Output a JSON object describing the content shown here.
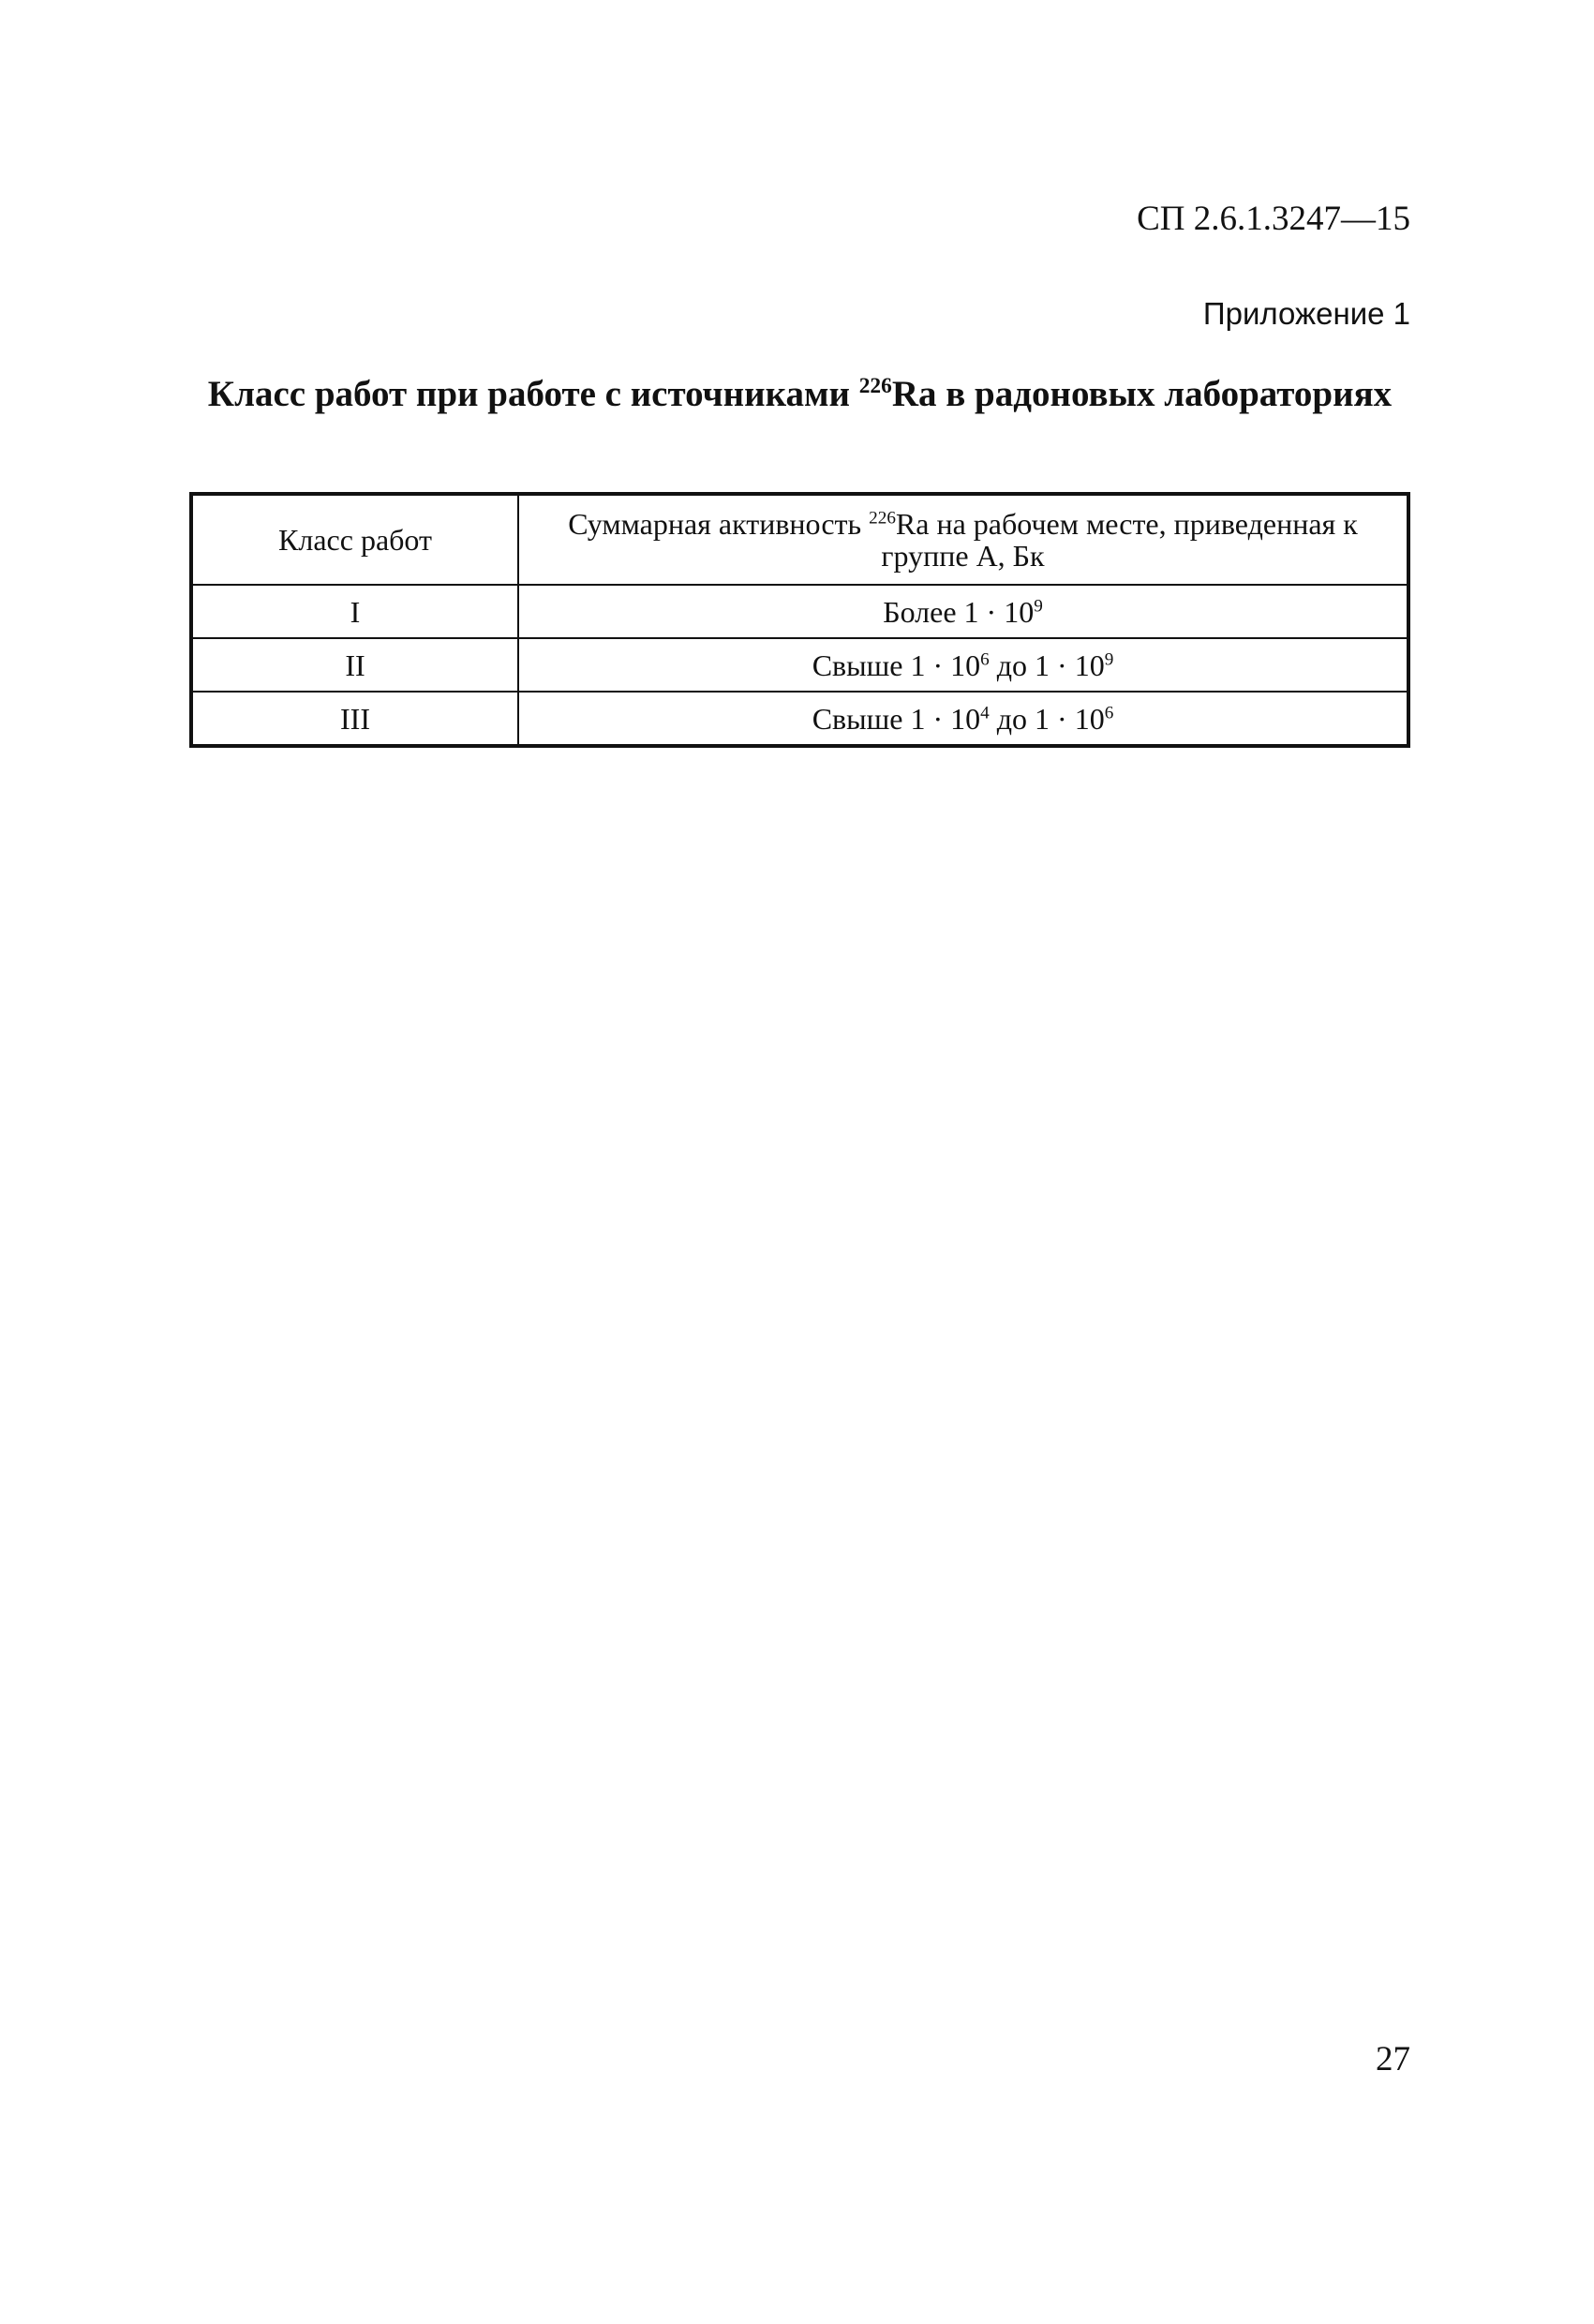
{
  "header": {
    "doc_code": "СП 2.6.1.3247—15",
    "appendix": "Приложение 1"
  },
  "title": {
    "before": "Класс работ при работе с источниками ",
    "isotope_mass": "226",
    "after": "Ra в радоновых лабораториях"
  },
  "table": {
    "headers": {
      "col1": "Класс работ",
      "col2_before": "Суммарная активность ",
      "col2_isotope_mass": "226",
      "col2_after": "Ra на рабочем месте, приведенная к группе А, Бк"
    },
    "rows": [
      {
        "class": "I",
        "a": "Более 1 · 10",
        "a_exp": "9",
        "b": "",
        "b_exp": ""
      },
      {
        "class": "II",
        "a": "Свыше 1 · 10",
        "a_exp": "6",
        "b": " до 1 · 10",
        "b_exp": "9"
      },
      {
        "class": "III",
        "a": "Свыше 1 · 10",
        "a_exp": "4",
        "b": " до 1 · 10",
        "b_exp": "6"
      }
    ]
  },
  "footer": {
    "page_number": "27"
  }
}
